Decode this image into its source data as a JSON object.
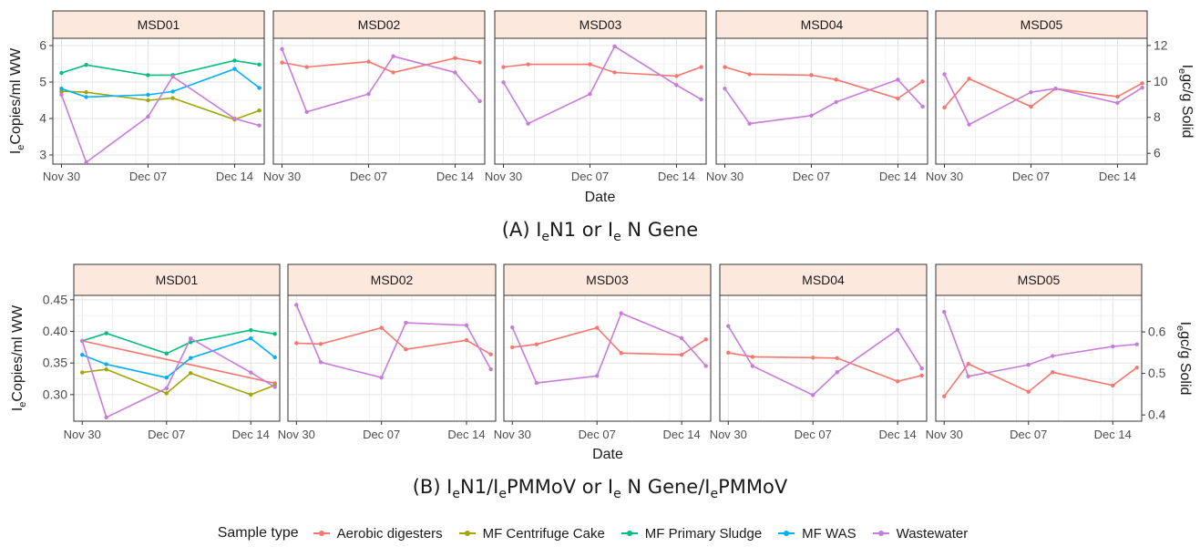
{
  "captions": {
    "a": {
      "pre": "(A) I",
      "s1": "e",
      "mid": "N1 or I",
      "s2": "e",
      "post": " N Gene"
    },
    "b": {
      "pre": "(B) I",
      "s1": "e",
      "mid1": "N1/I",
      "s2": "e",
      "mid2": "PMMoV or I",
      "s3": "e",
      "mid3": " N Gene/I",
      "s4": "e",
      "post": "PMMoV"
    }
  },
  "legend": {
    "title": "Sample type",
    "items": [
      {
        "label": "Aerobic digesters",
        "color": "#F8766D"
      },
      {
        "label": "MF Centrifuge Cake",
        "color": "#A3A500"
      },
      {
        "label": "MF Primary Sludge",
        "color": "#00BF7D"
      },
      {
        "label": "MF WAS",
        "color": "#00B0F6"
      },
      {
        "label": "Wastewater",
        "color": "#C77CDA"
      }
    ]
  },
  "chart_data": [
    {
      "type": "line",
      "panel_id": "A",
      "facets": [
        "MSD01",
        "MSD02",
        "MSD03",
        "MSD04",
        "MSD05"
      ],
      "xlabel": "Date",
      "x_ticks": [
        "Nov 30",
        "Dec 07",
        "Dec 14"
      ],
      "ylabel_left": {
        "pre": "I",
        "sub": "e",
        "post": "Copies/ml WW"
      },
      "ylabel_right": {
        "pre": "I",
        "sub": "e",
        "post": "gc/g Solid"
      },
      "y_left_ticks": [
        "3",
        "4",
        "5",
        "6"
      ],
      "y_left_ticks_val": [
        3,
        4,
        5,
        6
      ],
      "y_left_range": [
        2.75,
        6.2
      ],
      "y_right_ticks": [
        "6",
        "8",
        "10",
        "12"
      ],
      "y_right_ticks_val": [
        6,
        8,
        10,
        12
      ],
      "y_right_range": [
        5.4,
        12.4
      ],
      "x_range_days": [
        -0.7,
        16.4
      ],
      "show_xlabel": true,
      "series": [
        {
          "facet": "MSD01",
          "name": "Aerobic digesters",
          "axis": "left",
          "points": [
            [
              0,
              4.72
            ]
          ]
        },
        {
          "facet": "MSD01",
          "name": "MF Centrifuge Cake",
          "axis": "left",
          "points": [
            [
              0,
              4.75
            ],
            [
              2,
              4.72
            ],
            [
              7,
              4.5
            ],
            [
              9,
              4.56
            ],
            [
              14,
              3.97
            ],
            [
              16,
              4.22
            ]
          ]
        },
        {
          "facet": "MSD01",
          "name": "MF Primary Sludge",
          "axis": "left",
          "points": [
            [
              0,
              5.25
            ],
            [
              2,
              5.47
            ],
            [
              7,
              5.19
            ],
            [
              9,
              5.19
            ],
            [
              14,
              5.59
            ],
            [
              16,
              5.48
            ]
          ]
        },
        {
          "facet": "MSD01",
          "name": "MF WAS",
          "axis": "left",
          "points": [
            [
              0,
              4.82
            ],
            [
              2,
              4.59
            ],
            [
              7,
              4.65
            ],
            [
              9,
              4.74
            ],
            [
              14,
              5.36
            ],
            [
              16,
              4.84
            ]
          ]
        },
        {
          "facet": "MSD01",
          "name": "Wastewater",
          "axis": "left",
          "points": [
            [
              0,
              4.65
            ],
            [
              2,
              2.8
            ],
            [
              7,
              4.05
            ],
            [
              9,
              5.15
            ],
            [
              14,
              4.0
            ],
            [
              16,
              3.81
            ]
          ]
        },
        {
          "facet": "MSD02",
          "name": "Aerobic digesters",
          "axis": "right",
          "points": [
            [
              0,
              11.05
            ],
            [
              2,
              10.8
            ],
            [
              7,
              11.1
            ],
            [
              9,
              10.5
            ],
            [
              14,
              11.3
            ],
            [
              16,
              11.06
            ]
          ]
        },
        {
          "facet": "MSD02",
          "name": "Wastewater",
          "axis": "right",
          "points": [
            [
              0,
              11.8
            ],
            [
              2,
              8.3
            ],
            [
              7,
              9.3
            ],
            [
              9,
              11.4
            ],
            [
              14,
              10.5
            ],
            [
              16,
              8.9
            ]
          ]
        },
        {
          "facet": "MSD03",
          "name": "Aerobic digesters",
          "axis": "right",
          "points": [
            [
              0,
              10.8
            ],
            [
              2,
              10.95
            ],
            [
              7,
              10.95
            ],
            [
              9,
              10.5
            ],
            [
              14,
              10.3
            ],
            [
              16,
              10.8
            ]
          ]
        },
        {
          "facet": "MSD03",
          "name": "Wastewater",
          "axis": "right",
          "points": [
            [
              0,
              9.95
            ],
            [
              2,
              7.65
            ],
            [
              7,
              9.3
            ],
            [
              9,
              11.95
            ],
            [
              14,
              9.8
            ],
            [
              16,
              9.0
            ]
          ]
        },
        {
          "facet": "MSD04",
          "name": "Aerobic digesters",
          "axis": "right",
          "points": [
            [
              0,
              10.8
            ],
            [
              2,
              10.4
            ],
            [
              7,
              10.35
            ],
            [
              9,
              10.1
            ],
            [
              14,
              9.05
            ],
            [
              16,
              10.0
            ]
          ]
        },
        {
          "facet": "MSD04",
          "name": "Wastewater",
          "axis": "right",
          "points": [
            [
              0,
              9.6
            ],
            [
              2,
              7.65
            ],
            [
              7,
              8.1
            ],
            [
              9,
              8.85
            ],
            [
              14,
              10.1
            ],
            [
              16,
              8.6
            ]
          ]
        },
        {
          "facet": "MSD05",
          "name": "Aerobic digesters",
          "axis": "right",
          "points": [
            [
              0,
              8.55
            ],
            [
              2,
              10.15
            ],
            [
              7,
              8.6
            ],
            [
              9,
              9.6
            ],
            [
              14,
              9.15
            ],
            [
              16,
              9.9
            ]
          ]
        },
        {
          "facet": "MSD05",
          "name": "Wastewater",
          "axis": "right",
          "points": [
            [
              0,
              10.4
            ],
            [
              2,
              7.6
            ],
            [
              7,
              9.4
            ],
            [
              9,
              9.6
            ],
            [
              14,
              8.8
            ],
            [
              16,
              9.65
            ]
          ]
        }
      ]
    },
    {
      "type": "line",
      "panel_id": "B",
      "facets": [
        "MSD01",
        "MSD02",
        "MSD03",
        "MSD04",
        "MSD05"
      ],
      "xlabel": "Date",
      "x_ticks": [
        "Nov 30",
        "Dec 07",
        "Dec 14"
      ],
      "ylabel_left": {
        "pre": "I",
        "sub": "e",
        "post": "Copies/ml WW"
      },
      "ylabel_right": {
        "pre": "I",
        "sub": "e",
        "post": "gc/g Solid"
      },
      "y_left_ticks": [
        "0.30",
        "0.35",
        "0.40",
        "0.45"
      ],
      "y_left_ticks_val": [
        0.3,
        0.35,
        0.4,
        0.45
      ],
      "y_left_range": [
        0.258,
        0.457
      ],
      "y_right_ticks": [
        "0.4",
        "0.5",
        "0.6"
      ],
      "y_right_ticks_val": [
        0.4,
        0.5,
        0.6
      ],
      "y_right_range": [
        0.385,
        0.688
      ],
      "x_range_days": [
        -0.7,
        16.4
      ],
      "show_xlabel": true,
      "series": [
        {
          "facet": "MSD01",
          "name": "Aerobic digesters",
          "axis": "left",
          "points": [
            [
              0,
              0.385
            ],
            [
              16,
              0.318
            ]
          ]
        },
        {
          "facet": "MSD01",
          "name": "MF Centrifuge Cake",
          "axis": "left",
          "points": [
            [
              0,
              0.335
            ],
            [
              2,
              0.34
            ],
            [
              7,
              0.302
            ],
            [
              9,
              0.334
            ],
            [
              14,
              0.3
            ],
            [
              16,
              0.315
            ]
          ]
        },
        {
          "facet": "MSD01",
          "name": "MF Primary Sludge",
          "axis": "left",
          "points": [
            [
              0,
              0.385
            ],
            [
              2,
              0.397
            ],
            [
              7,
              0.365
            ],
            [
              9,
              0.383
            ],
            [
              14,
              0.402
            ],
            [
              16,
              0.396
            ]
          ]
        },
        {
          "facet": "MSD01",
          "name": "MF WAS",
          "axis": "left",
          "points": [
            [
              0,
              0.363
            ],
            [
              2,
              0.348
            ],
            [
              7,
              0.327
            ],
            [
              9,
              0.358
            ],
            [
              14,
              0.389
            ],
            [
              16,
              0.359
            ]
          ]
        },
        {
          "facet": "MSD01",
          "name": "Wastewater",
          "axis": "left",
          "points": [
            [
              0,
              0.385
            ],
            [
              2,
              0.264
            ],
            [
              7,
              0.31
            ],
            [
              9,
              0.389
            ],
            [
              14,
              0.335
            ],
            [
              16,
              0.312
            ]
          ]
        },
        {
          "facet": "MSD02",
          "name": "Aerobic digesters",
          "axis": "right",
          "points": [
            [
              0,
              0.573
            ],
            [
              2,
              0.571
            ],
            [
              7,
              0.61
            ],
            [
              9,
              0.558
            ],
            [
              14,
              0.58
            ],
            [
              16,
              0.546
            ]
          ]
        },
        {
          "facet": "MSD02",
          "name": "Wastewater",
          "axis": "right",
          "points": [
            [
              0,
              0.665
            ],
            [
              2,
              0.527
            ],
            [
              7,
              0.49
            ],
            [
              9,
              0.622
            ],
            [
              14,
              0.616
            ],
            [
              16,
              0.51
            ]
          ]
        },
        {
          "facet": "MSD03",
          "name": "Aerobic digesters",
          "axis": "right",
          "points": [
            [
              0,
              0.563
            ],
            [
              2,
              0.57
            ],
            [
              7,
              0.61
            ],
            [
              9,
              0.549
            ],
            [
              14,
              0.545
            ],
            [
              16,
              0.582
            ]
          ]
        },
        {
          "facet": "MSD03",
          "name": "Wastewater",
          "axis": "right",
          "points": [
            [
              0,
              0.611
            ],
            [
              2,
              0.477
            ],
            [
              7,
              0.494
            ],
            [
              9,
              0.645
            ],
            [
              14,
              0.585
            ],
            [
              16,
              0.518
            ]
          ]
        },
        {
          "facet": "MSD04",
          "name": "Aerobic digesters",
          "axis": "right",
          "points": [
            [
              0,
              0.55
            ],
            [
              2,
              0.54
            ],
            [
              7,
              0.538
            ],
            [
              9,
              0.537
            ],
            [
              14,
              0.481
            ],
            [
              16,
              0.495
            ]
          ]
        },
        {
          "facet": "MSD04",
          "name": "Wastewater",
          "axis": "right",
          "points": [
            [
              0,
              0.614
            ],
            [
              2,
              0.518
            ],
            [
              7,
              0.448
            ],
            [
              9,
              0.503
            ],
            [
              14,
              0.605
            ],
            [
              16,
              0.512
            ]
          ]
        },
        {
          "facet": "MSD05",
          "name": "Aerobic digesters",
          "axis": "right",
          "points": [
            [
              0,
              0.445
            ],
            [
              2,
              0.523
            ],
            [
              7,
              0.456
            ],
            [
              9,
              0.503
            ],
            [
              14,
              0.471
            ],
            [
              16,
              0.514
            ]
          ]
        },
        {
          "facet": "MSD05",
          "name": "Wastewater",
          "axis": "right",
          "points": [
            [
              0,
              0.648
            ],
            [
              2,
              0.493
            ],
            [
              7,
              0.521
            ],
            [
              9,
              0.542
            ],
            [
              14,
              0.565
            ],
            [
              16,
              0.57
            ]
          ]
        }
      ]
    }
  ]
}
